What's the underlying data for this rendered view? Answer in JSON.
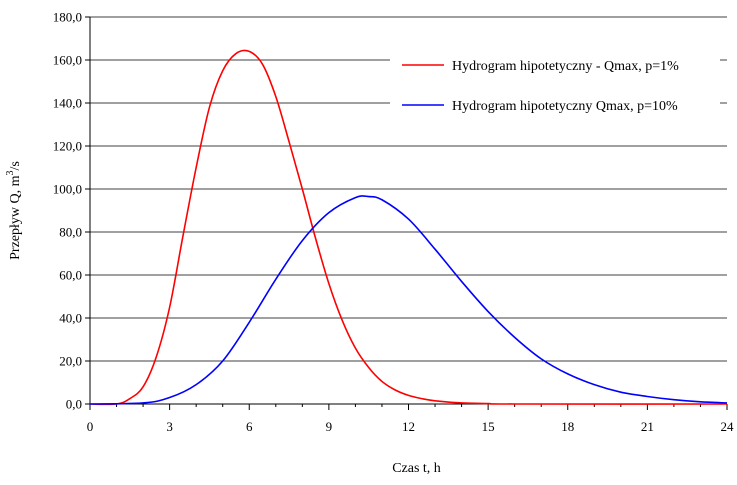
{
  "chart_data": {
    "type": "line",
    "xlabel": "Czas t, h",
    "ylabel": "Przepływ Q, m",
    "ylabel_sup": "3",
    "ylabel_tail": "/s",
    "xlim": [
      0,
      24
    ],
    "ylim": [
      0,
      180
    ],
    "x_ticks": [
      0,
      3,
      6,
      9,
      12,
      15,
      18,
      21,
      24
    ],
    "x_tick_labels": [
      "0",
      "3",
      "6",
      "9",
      "12",
      "15",
      "18",
      "21",
      "24"
    ],
    "y_ticks": [
      0,
      20,
      40,
      60,
      80,
      100,
      120,
      140,
      160,
      180
    ],
    "y_tick_labels": [
      "0,0",
      "20,0",
      "40,0",
      "60,0",
      "80,0",
      "100,0",
      "120,0",
      "140,0",
      "160,0",
      "180,0"
    ],
    "grid": "horizontal",
    "legend_position": "top-right",
    "series": [
      {
        "name": "Hydrogram hipotetyczny - Qmax, p=1%",
        "color": "#ff0000",
        "x": [
          0,
          1,
          1.5,
          2,
          2.5,
          3,
          3.5,
          4,
          4.5,
          5,
          5.5,
          6,
          6.5,
          7,
          7.5,
          8,
          8.5,
          9,
          9.5,
          10,
          10.5,
          11,
          11.5,
          12,
          12.5,
          13,
          14,
          15,
          16,
          24
        ],
        "values": [
          0,
          0,
          2.5,
          8,
          22,
          45,
          78,
          110,
          138,
          155,
          163,
          164,
          158,
          143,
          122,
          100,
          77,
          56,
          39,
          26,
          17,
          10.5,
          6.5,
          4,
          2.5,
          1.5,
          0.5,
          0.2,
          0,
          0
        ]
      },
      {
        "name": "Hydrogram hipotetyczny Qmax, p=10%",
        "color": "#0000ff",
        "x": [
          0,
          2,
          3,
          4,
          5,
          6,
          7,
          8,
          9,
          10,
          10.5,
          11,
          12,
          13,
          14,
          15,
          16,
          17,
          18,
          19,
          20,
          21,
          22,
          23,
          24
        ],
        "values": [
          0,
          0.5,
          3,
          9,
          20,
          38,
          58,
          76,
          89,
          96,
          96.5,
          95,
          86,
          72,
          57,
          43,
          31,
          21,
          14,
          9,
          5.5,
          3.5,
          2,
          1,
          0.5
        ]
      }
    ]
  }
}
